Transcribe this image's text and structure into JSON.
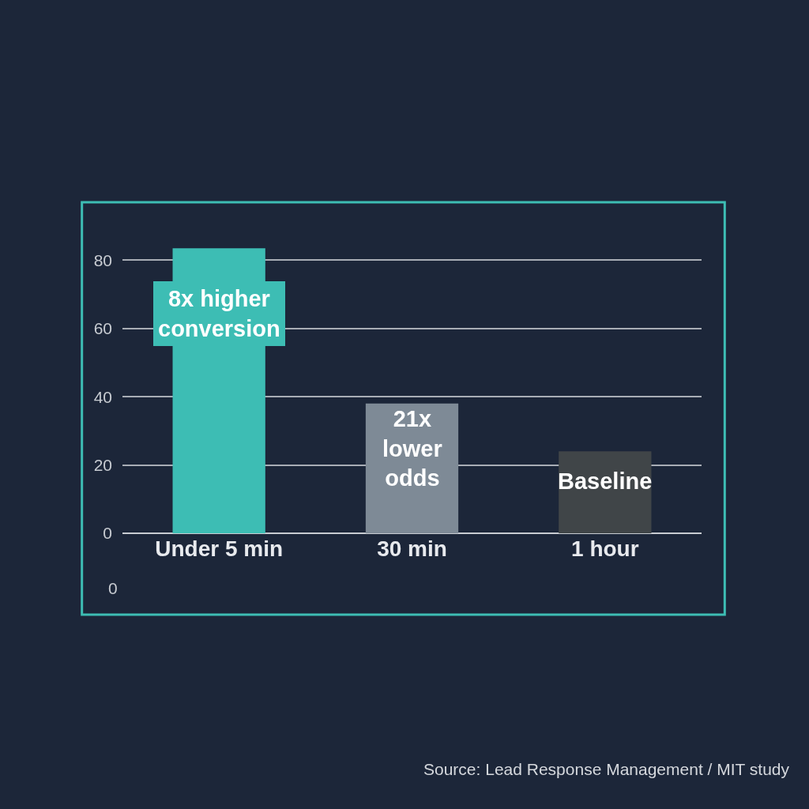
{
  "chart_data": {
    "type": "bar",
    "categories": [
      "Under 5 min",
      "30 min",
      "1 hour"
    ],
    "values": [
      83.5,
      38,
      24
    ],
    "colors": [
      "#3dbdb4",
      "#7e8a96",
      "#404548"
    ],
    "ylim": [
      0,
      97
    ],
    "yticks": [
      0,
      20,
      40,
      60,
      80
    ],
    "grid": "y",
    "annotations": [
      "8x higher\nconversion",
      "21x\nlower\nodds",
      "Baseline",
      "0",
      "Source: Lead Response Management / MIT study"
    ]
  }
}
